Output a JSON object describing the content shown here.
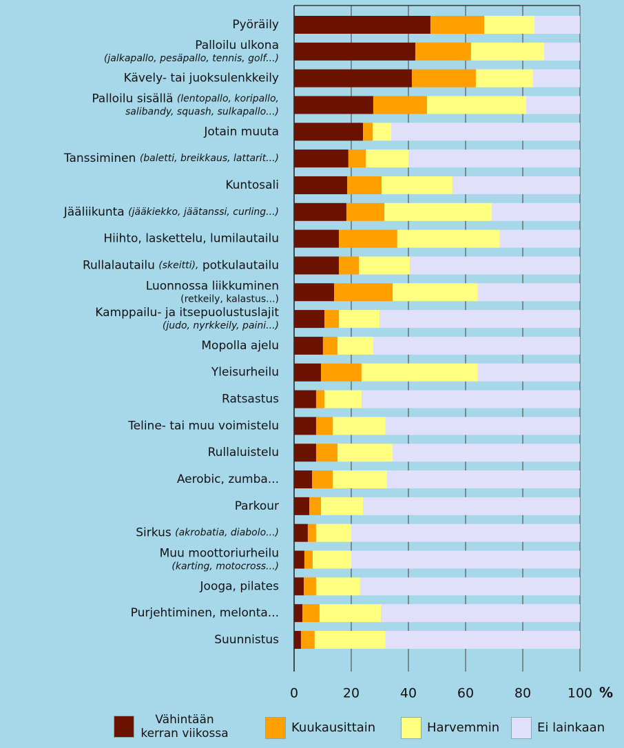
{
  "chart_data": {
    "type": "stacked-bar-horizontal",
    "categories": [
      [
        [
          "Pyöräily"
        ]
      ],
      [
        [
          "Palloilu ulkona"
        ],
        [
          {
            "text": "(jalkapallo, pesäpallo, tennis, golf...)",
            "italic": true
          }
        ]
      ],
      [
        [
          "Kävely- tai juoksulenkkeily"
        ]
      ],
      [
        [
          "Palloilu sisällä ",
          {
            "text": "(lentopallo, koripallo,",
            "italic": true
          }
        ],
        [
          {
            "text": "salibandy, squash, sulkapallo...)",
            "italic": true
          }
        ]
      ],
      [
        [
          "Jotain muuta"
        ]
      ],
      [
        [
          "Tanssiminen ",
          {
            "text": "(baletti, breikkaus, lattarit...)",
            "italic": true
          }
        ]
      ],
      [
        [
          "Kuntosali"
        ]
      ],
      [
        [
          "Jääliikunta ",
          {
            "text": "(jääkiekko, jäätanssi, curling...)",
            "italic": true
          }
        ]
      ],
      [
        [
          "Hiihto, laskettelu, lumilautailu"
        ]
      ],
      [
        [
          "Rullalautailu ",
          {
            "text": "(skeitti),",
            "italic": true
          },
          " potkulautailu"
        ]
      ],
      [
        [
          "Luonnossa liikkuminen"
        ],
        [
          "(retkeily, kalastus...)"
        ]
      ],
      [
        [
          "Kamppailu- ja itsepuolustuslajit"
        ],
        [
          {
            "text": "(judo, nyrkkeily, paini...)",
            "italic": true
          }
        ]
      ],
      [
        [
          "Mopolla ajelu"
        ]
      ],
      [
        [
          "Yleisurheilu"
        ]
      ],
      [
        [
          "Ratsastus"
        ]
      ],
      [
        [
          "Teline- tai muu voimistelu"
        ]
      ],
      [
        [
          "Rullaluistelu"
        ]
      ],
      [
        [
          "Aerobic, zumba..."
        ]
      ],
      [
        [
          "Parkour"
        ]
      ],
      [
        [
          "Sirkus ",
          {
            "text": "(akrobatia, diabolo...)",
            "italic": true
          }
        ]
      ],
      [
        [
          "Muu moottoriurheilu"
        ],
        [
          {
            "text": "(karting, motocross...)",
            "italic": true
          }
        ]
      ],
      [
        [
          "Jooga, pilates"
        ]
      ],
      [
        [
          "Purjehtiminen, melonta..."
        ]
      ],
      [
        [
          "Suunnistus"
        ]
      ]
    ],
    "series": [
      {
        "name": "Vähintään kerran viikossa",
        "color": "#6b1200",
        "values": [
          47.7,
          42.4,
          41.2,
          27.7,
          24.1,
          19,
          18.6,
          18.3,
          15.7,
          15.7,
          14,
          10.6,
          10.1,
          9.4,
          7.7,
          7.7,
          7.7,
          6.3,
          5.3,
          4.8,
          3.6,
          3.4,
          2.9,
          2.4
        ]
      },
      {
        "name": "Kuukausittain",
        "color": "#ff9f00",
        "values": [
          18.8,
          19.5,
          22.4,
          18.8,
          3.4,
          6.1,
          12,
          13.3,
          20.4,
          7,
          20.5,
          5.1,
          5.1,
          14.2,
          2.9,
          5.8,
          7.5,
          7.2,
          4.1,
          2.9,
          2.9,
          4.3,
          6,
          4.8
        ]
      },
      {
        "name": "Harvemmin",
        "color": "#ffff80",
        "values": [
          17.6,
          25.6,
          20,
          34.7,
          6.5,
          14.9,
          24.8,
          37.6,
          35.9,
          17.8,
          29.8,
          14.2,
          12.5,
          40.7,
          13,
          18.5,
          19.3,
          19,
          14.7,
          12.3,
          13.5,
          15.4,
          21.5,
          24.8
        ]
      },
      {
        "name": "Ei lainkaan",
        "color": "#e0e0fa",
        "values": [
          15.9,
          12.5,
          16.4,
          18.8,
          66,
          60,
          44.6,
          30.8,
          28,
          59.5,
          35.7,
          70.1,
          72.3,
          35.7,
          76.4,
          68,
          65.5,
          67.5,
          75.9,
          80,
          80,
          76.9,
          69.6,
          68
        ]
      }
    ],
    "xlim": [
      0,
      100
    ],
    "xticks": [
      0,
      20,
      40,
      60,
      80,
      100
    ],
    "x_unit": "%",
    "grid": true
  }
}
